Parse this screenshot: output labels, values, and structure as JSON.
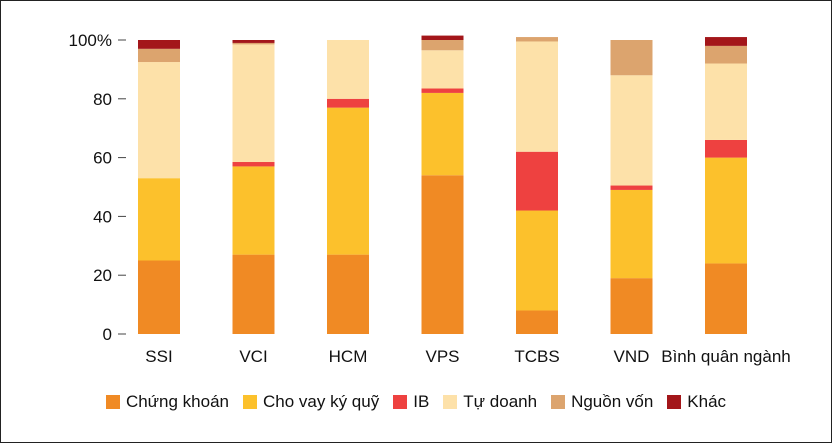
{
  "chart_data": {
    "type": "bar",
    "stacked": true,
    "categories": [
      "SSI",
      "VCI",
      "HCM",
      "VPS",
      "TCBS",
      "VND",
      "Bình quân ngành"
    ],
    "y_ticks": [
      "0",
      "20",
      "40",
      "60",
      "80",
      "100%"
    ],
    "ylim": [
      0,
      100
    ],
    "grid": false,
    "legend_position": "bottom",
    "series": [
      {
        "name": "Chứng khoán",
        "color": "#F08A24",
        "values": [
          25,
          27,
          27,
          54,
          8,
          19,
          24
        ]
      },
      {
        "name": "Cho vay ký quỹ",
        "color": "#FCC12C",
        "values": [
          28,
          30,
          50,
          28,
          34,
          30,
          36
        ]
      },
      {
        "name": "IB",
        "color": "#EE4140",
        "values": [
          0,
          1.5,
          3,
          1.5,
          20,
          1.5,
          6
        ]
      },
      {
        "name": "Tự doanh",
        "color": "#FDE1A9",
        "values": [
          39.5,
          40,
          20,
          13,
          37.5,
          37.5,
          26
        ]
      },
      {
        "name": "Nguồn vốn",
        "color": "#DCA46E",
        "values": [
          4.5,
          0.5,
          0,
          3.5,
          1.5,
          12,
          6
        ]
      },
      {
        "name": "Khác",
        "color": "#A3161A",
        "values": [
          3,
          1,
          0,
          1.5,
          0,
          0,
          3
        ]
      }
    ]
  }
}
